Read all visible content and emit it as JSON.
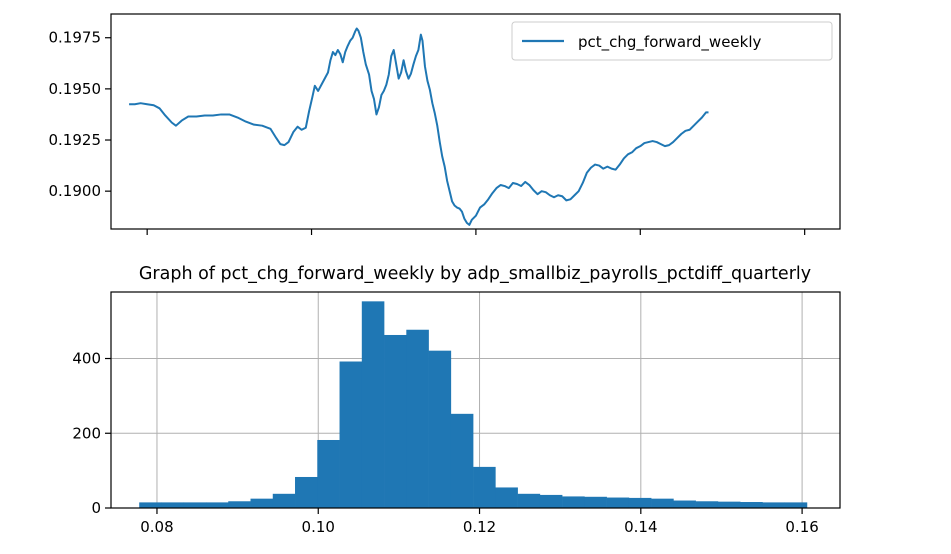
{
  "chart_data": [
    {
      "type": "line",
      "title": "",
      "xlabel": "",
      "ylabel": "",
      "xlim": [
        0.0756,
        0.1643
      ],
      "ylim": [
        0.18815,
        0.19866
      ],
      "yticks": [
        0.19,
        0.1925,
        0.195,
        0.1975
      ],
      "ytick_labels": [
        "0.1900",
        "0.1925",
        "0.1950",
        "0.1975"
      ],
      "xticks": [
        0.08,
        0.1,
        0.12,
        0.14,
        0.16
      ],
      "xtick_labels_visible": false,
      "grid": false,
      "legend": {
        "position": "upper right",
        "entries": [
          "pct_chg_forward_weekly"
        ]
      },
      "series": [
        {
          "name": "pct_chg_forward_weekly",
          "color": "#1f77b4",
          "points": [
            [
              0.0778,
              0.19425
            ],
            [
              0.0785,
              0.19425
            ],
            [
              0.0792,
              0.1943
            ],
            [
              0.08,
              0.19425
            ],
            [
              0.0808,
              0.1942
            ],
            [
              0.0815,
              0.19405
            ],
            [
              0.0822,
              0.1937
            ],
            [
              0.083,
              0.19335
            ],
            [
              0.0835,
              0.1932
            ],
            [
              0.0842,
              0.19345
            ],
            [
              0.085,
              0.19365
            ],
            [
              0.086,
              0.19365
            ],
            [
              0.087,
              0.1937
            ],
            [
              0.088,
              0.1937
            ],
            [
              0.089,
              0.19375
            ],
            [
              0.09,
              0.19375
            ],
            [
              0.091,
              0.1936
            ],
            [
              0.092,
              0.1934
            ],
            [
              0.093,
              0.19325
            ],
            [
              0.094,
              0.1932
            ],
            [
              0.095,
              0.19305
            ],
            [
              0.0957,
              0.1926
            ],
            [
              0.0962,
              0.1923
            ],
            [
              0.0967,
              0.19225
            ],
            [
              0.0972,
              0.1924
            ],
            [
              0.0978,
              0.1929
            ],
            [
              0.0983,
              0.19315
            ],
            [
              0.0988,
              0.193
            ],
            [
              0.0993,
              0.1931
            ],
            [
              0.0997,
              0.1939
            ],
            [
              0.1001,
              0.1946
            ],
            [
              0.1004,
              0.19515
            ],
            [
              0.1008,
              0.1949
            ],
            [
              0.1012,
              0.1952
            ],
            [
              0.1016,
              0.1955
            ],
            [
              0.102,
              0.1958
            ],
            [
              0.1023,
              0.1964
            ],
            [
              0.1026,
              0.1968
            ],
            [
              0.1029,
              0.19665
            ],
            [
              0.1032,
              0.1969
            ],
            [
              0.1035,
              0.1967
            ],
            [
              0.1038,
              0.1963
            ],
            [
              0.1041,
              0.1968
            ],
            [
              0.1044,
              0.1971
            ],
            [
              0.1047,
              0.19735
            ],
            [
              0.105,
              0.1975
            ],
            [
              0.1053,
              0.1978
            ],
            [
              0.1055,
              0.19795
            ],
            [
              0.1057,
              0.19785
            ],
            [
              0.106,
              0.1975
            ],
            [
              0.1063,
              0.1968
            ],
            [
              0.1066,
              0.1962
            ],
            [
              0.107,
              0.1957
            ],
            [
              0.1073,
              0.1949
            ],
            [
              0.1076,
              0.1945
            ],
            [
              0.1079,
              0.19375
            ],
            [
              0.1082,
              0.1941
            ],
            [
              0.1085,
              0.1947
            ],
            [
              0.1088,
              0.1949
            ],
            [
              0.1091,
              0.1952
            ],
            [
              0.1094,
              0.1957
            ],
            [
              0.1097,
              0.1966
            ],
            [
              0.11,
              0.1969
            ],
            [
              0.1103,
              0.1962
            ],
            [
              0.1106,
              0.1955
            ],
            [
              0.1109,
              0.1958
            ],
            [
              0.1112,
              0.1964
            ],
            [
              0.1115,
              0.19585
            ],
            [
              0.1118,
              0.1955
            ],
            [
              0.1121,
              0.19575
            ],
            [
              0.1124,
              0.1962
            ],
            [
              0.1127,
              0.1966
            ],
            [
              0.113,
              0.1969
            ],
            [
              0.1133,
              0.19765
            ],
            [
              0.1135,
              0.19735
            ],
            [
              0.1138,
              0.1961
            ],
            [
              0.1141,
              0.1954
            ],
            [
              0.1144,
              0.19495
            ],
            [
              0.1147,
              0.1943
            ],
            [
              0.115,
              0.1938
            ],
            [
              0.1153,
              0.1932
            ],
            [
              0.1156,
              0.1924
            ],
            [
              0.1159,
              0.1917
            ],
            [
              0.1162,
              0.1912
            ],
            [
              0.1165,
              0.1905
            ],
            [
              0.1168,
              0.19
            ],
            [
              0.1171,
              0.1895
            ],
            [
              0.1174,
              0.1893
            ],
            [
              0.1177,
              0.1892
            ],
            [
              0.118,
              0.18915
            ],
            [
              0.1183,
              0.189
            ],
            [
              0.1186,
              0.18865
            ],
            [
              0.1189,
              0.18845
            ],
            [
              0.1192,
              0.18835
            ],
            [
              0.1195,
              0.1886
            ],
            [
              0.12,
              0.1888
            ],
            [
              0.1205,
              0.1892
            ],
            [
              0.121,
              0.18935
            ],
            [
              0.1215,
              0.1896
            ],
            [
              0.122,
              0.1899
            ],
            [
              0.1225,
              0.19015
            ],
            [
              0.123,
              0.1903
            ],
            [
              0.1235,
              0.19025
            ],
            [
              0.124,
              0.19015
            ],
            [
              0.1245,
              0.1904
            ],
            [
              0.125,
              0.19035
            ],
            [
              0.1255,
              0.19025
            ],
            [
              0.126,
              0.19045
            ],
            [
              0.1265,
              0.1903
            ],
            [
              0.127,
              0.19005
            ],
            [
              0.1275,
              0.18985
            ],
            [
              0.128,
              0.19
            ],
            [
              0.1285,
              0.18995
            ],
            [
              0.129,
              0.1898
            ],
            [
              0.1295,
              0.1897
            ],
            [
              0.13,
              0.1898
            ],
            [
              0.1305,
              0.18975
            ],
            [
              0.131,
              0.18955
            ],
            [
              0.1315,
              0.1896
            ],
            [
              0.132,
              0.1898
            ],
            [
              0.1325,
              0.19
            ],
            [
              0.133,
              0.1904
            ],
            [
              0.1335,
              0.1909
            ],
            [
              0.134,
              0.19115
            ],
            [
              0.1345,
              0.1913
            ],
            [
              0.135,
              0.19125
            ],
            [
              0.1355,
              0.1911
            ],
            [
              0.136,
              0.1912
            ],
            [
              0.1365,
              0.1911
            ],
            [
              0.137,
              0.19105
            ],
            [
              0.1375,
              0.1913
            ],
            [
              0.138,
              0.1916
            ],
            [
              0.1385,
              0.1918
            ],
            [
              0.139,
              0.1919
            ],
            [
              0.1395,
              0.1921
            ],
            [
              0.14,
              0.1922
            ],
            [
              0.1405,
              0.19235
            ],
            [
              0.141,
              0.1924
            ],
            [
              0.1415,
              0.19245
            ],
            [
              0.142,
              0.1924
            ],
            [
              0.1425,
              0.1923
            ],
            [
              0.143,
              0.1922
            ],
            [
              0.1435,
              0.19225
            ],
            [
              0.144,
              0.1924
            ],
            [
              0.1445,
              0.1926
            ],
            [
              0.145,
              0.1928
            ],
            [
              0.1455,
              0.19295
            ],
            [
              0.146,
              0.193
            ],
            [
              0.1465,
              0.1932
            ],
            [
              0.147,
              0.1934
            ],
            [
              0.1475,
              0.1936
            ],
            [
              0.148,
              0.19385
            ],
            [
              0.1483,
              0.19385
            ]
          ]
        }
      ]
    },
    {
      "type": "bar",
      "subtype": "histogram",
      "title": "Graph of pct_chg_forward_weekly by adp_smallbiz_payrolls_pctdiff_quarterly",
      "xlabel": "",
      "ylabel": "",
      "xlim": [
        0.0743,
        0.1647
      ],
      "ylim": [
        0,
        578
      ],
      "yticks": [
        0,
        200,
        400
      ],
      "ytick_labels": [
        "0",
        "200",
        "400"
      ],
      "xticks": [
        0.08,
        0.1,
        0.12,
        0.14,
        0.16
      ],
      "xtick_labels": [
        "0.08",
        "0.10",
        "0.12",
        "0.14",
        "0.16"
      ],
      "grid": true,
      "color": "#1f77b4",
      "bin_start": 0.0778,
      "bin_width": 0.00276,
      "values": [
        15,
        15,
        15,
        15,
        18,
        25,
        38,
        83,
        182,
        392,
        553,
        463,
        477,
        421,
        252,
        110,
        55,
        38,
        35,
        31,
        30,
        28,
        27,
        25,
        20,
        18,
        17,
        16,
        15,
        15
      ]
    }
  ]
}
